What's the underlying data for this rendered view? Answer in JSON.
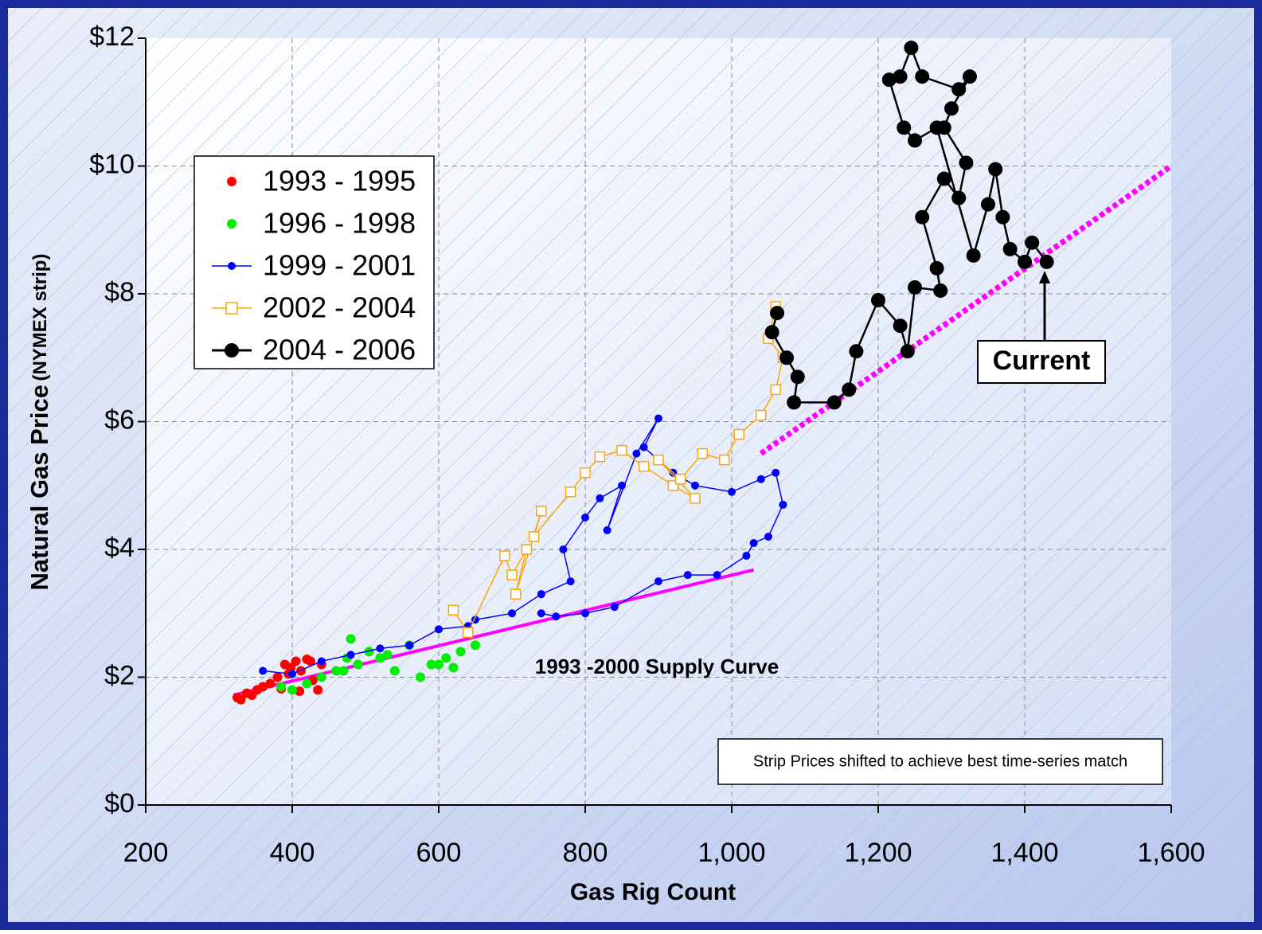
{
  "chart_data": {
    "type": "scatter",
    "x_label": "Gas Rig Count",
    "y_label": "Natural Gas Price",
    "y_label_note": "(NYMEX strip)",
    "xlim": [
      200,
      1600
    ],
    "ylim": [
      0,
      12
    ],
    "xticks": [
      200,
      400,
      600,
      800,
      {
        "value": 1000,
        "label": "1,000"
      },
      {
        "value": 1200,
        "label": "1,200"
      },
      {
        "value": 1400,
        "label": "1,400"
      },
      {
        "value": 1600,
        "label": "1,600"
      }
    ],
    "yticks": [
      {
        "value": 0,
        "label": "$0"
      },
      {
        "value": 2,
        "label": "$2"
      },
      {
        "value": 4,
        "label": "$4"
      },
      {
        "value": 6,
        "label": "$6"
      },
      {
        "value": 8,
        "label": "$8"
      },
      {
        "value": 10,
        "label": "$10"
      },
      {
        "value": 12,
        "label": "$12"
      }
    ],
    "grid": true,
    "legend": "upper left",
    "series": [
      {
        "name": "1993 - 1995",
        "color": "#ff0000",
        "marker": "circle",
        "connected": false,
        "x": [
          325,
          330,
          338,
          345,
          352,
          360,
          370,
          380,
          390,
          398,
          405,
          412,
          420,
          428,
          435,
          440,
          385,
          395,
          410,
          425
        ],
        "values": [
          1.68,
          1.65,
          1.75,
          1.72,
          1.8,
          1.85,
          1.9,
          2.0,
          2.2,
          2.15,
          2.25,
          2.1,
          2.28,
          1.95,
          1.8,
          2.2,
          1.82,
          2.05,
          1.78,
          2.25
        ]
      },
      {
        "name": "1996 - 1998",
        "color": "#00ee00",
        "marker": "circle",
        "connected": false,
        "x": [
          385,
          400,
          420,
          440,
          460,
          475,
          480,
          490,
          505,
          520,
          540,
          560,
          575,
          590,
          610,
          630,
          650,
          470,
          530,
          600,
          620
        ],
        "values": [
          1.85,
          1.8,
          1.9,
          2.0,
          2.1,
          2.3,
          2.6,
          2.2,
          2.4,
          2.3,
          2.1,
          2.5,
          2.0,
          2.2,
          2.3,
          2.4,
          2.5,
          2.1,
          2.35,
          2.2,
          2.15
        ]
      },
      {
        "name": "1999 - 2001",
        "color": "#0000ff",
        "marker": "circle",
        "connected": true,
        "x": [
          360,
          400,
          440,
          480,
          520,
          560,
          600,
          640,
          650,
          700,
          740,
          780,
          770,
          800,
          820,
          850,
          830,
          870,
          900,
          880,
          920,
          950,
          1000,
          1040,
          1060,
          1070,
          1050,
          1030,
          1020,
          980,
          940,
          900,
          840,
          800,
          760,
          740
        ],
        "values": [
          2.1,
          2.05,
          2.25,
          2.35,
          2.45,
          2.5,
          2.75,
          2.8,
          2.9,
          3.0,
          3.3,
          3.5,
          4.0,
          4.5,
          4.8,
          5.0,
          4.3,
          5.5,
          6.05,
          5.6,
          5.2,
          5.0,
          4.9,
          5.1,
          5.2,
          4.7,
          4.2,
          4.1,
          3.9,
          3.6,
          3.6,
          3.5,
          3.1,
          3.0,
          2.95,
          3.0
        ]
      },
      {
        "name": "2002 - 2004",
        "color": "#ffa500",
        "marker": "square",
        "connected": true,
        "x": [
          620,
          640,
          690,
          700,
          720,
          705,
          740,
          730,
          780,
          800,
          820,
          850,
          880,
          920,
          950,
          900,
          930,
          960,
          990,
          1010,
          1040,
          1060,
          1070,
          1050,
          1060
        ],
        "values": [
          3.05,
          2.7,
          3.9,
          3.6,
          4.0,
          3.3,
          4.6,
          4.2,
          4.9,
          5.2,
          5.45,
          5.55,
          5.3,
          5.0,
          4.8,
          5.4,
          5.1,
          5.5,
          5.4,
          5.8,
          6.1,
          6.5,
          7.0,
          7.3,
          7.8
        ]
      },
      {
        "name": "2004 - 2006",
        "color": "#000000",
        "marker": "circle",
        "connected": true,
        "x": [
          1062,
          1055,
          1075,
          1090,
          1085,
          1140,
          1160,
          1170,
          1200,
          1230,
          1240,
          1250,
          1285,
          1280,
          1260,
          1290,
          1310,
          1320,
          1290,
          1300,
          1325,
          1310,
          1260,
          1245,
          1230,
          1215,
          1235,
          1250,
          1280,
          1330,
          1350,
          1360,
          1370,
          1380,
          1400,
          1410,
          1430
        ],
        "values": [
          7.7,
          7.4,
          7.0,
          6.7,
          6.3,
          6.3,
          6.5,
          7.1,
          7.9,
          7.5,
          7.1,
          8.1,
          8.05,
          8.4,
          9.2,
          9.8,
          9.5,
          10.05,
          10.6,
          10.9,
          11.4,
          11.2,
          11.4,
          11.85,
          11.4,
          11.35,
          10.6,
          10.4,
          10.6,
          8.6,
          9.4,
          9.95,
          9.2,
          8.7,
          8.5,
          8.8,
          8.5
        ]
      }
    ],
    "lines": [
      {
        "color": "#ff00ff",
        "dash": false,
        "x": [
          320,
          1030
        ],
        "y": [
          1.72,
          3.68
        ]
      },
      {
        "color": "#ff00ff",
        "dash": true,
        "x": [
          1040,
          1600
        ],
        "y": [
          5.5,
          10
        ]
      }
    ],
    "annotations": {
      "supply_curve": "1993 -2000 Supply Curve",
      "current": "Current",
      "note": "Strip Prices shifted to achieve best time-series match"
    }
  }
}
